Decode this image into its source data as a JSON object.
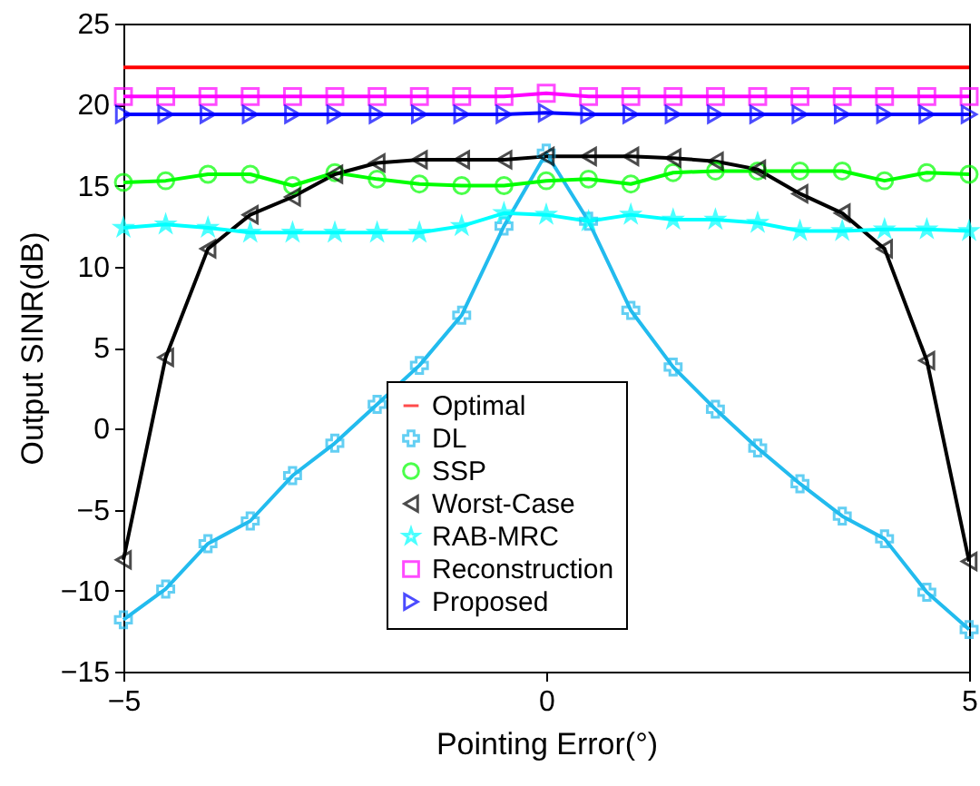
{
  "chart_data": {
    "type": "line",
    "xlabel": "Pointing Error(°)",
    "ylabel": "Output SINR(dB)",
    "x": [
      -5,
      -4.5,
      -4,
      -3.5,
      -3,
      -2.5,
      -2,
      -1.5,
      -1,
      -0.5,
      0,
      0.5,
      1,
      1.5,
      2,
      2.5,
      3,
      3.5,
      4,
      4.5,
      5
    ],
    "xlim": [
      -5,
      5
    ],
    "xticks": [
      -5,
      0,
      5
    ],
    "ylim": [
      -15,
      25
    ],
    "yticks": [
      -15,
      -10,
      -5,
      0,
      5,
      10,
      15,
      20,
      25
    ],
    "grid": false,
    "legend": "bottom",
    "series": [
      {
        "name": "Optimal",
        "color": "#ff0000",
        "marker": "none",
        "values": [
          22.3,
          22.3,
          22.3,
          22.3,
          22.3,
          22.3,
          22.3,
          22.3,
          22.3,
          22.3,
          22.3,
          22.3,
          22.3,
          22.3,
          22.3,
          22.3,
          22.3,
          22.3,
          22.3,
          22.3,
          22.3
        ]
      },
      {
        "name": "DL",
        "color": "#22bbee",
        "marker": "cross",
        "values": [
          -11.8,
          -9.9,
          -7.1,
          -5.7,
          -2.9,
          -0.9,
          1.5,
          3.9,
          7.0,
          12.5,
          17.0,
          12.8,
          7.3,
          3.8,
          1.2,
          -1.2,
          -3.4,
          -5.4,
          -6.8,
          -10.1,
          -12.4
        ]
      },
      {
        "name": "SSP",
        "color": "#00ff00",
        "marker": "circle",
        "values": [
          15.2,
          15.3,
          15.7,
          15.7,
          15.0,
          15.8,
          15.4,
          15.1,
          15.0,
          15.0,
          15.3,
          15.4,
          15.1,
          15.8,
          15.9,
          15.9,
          15.9,
          15.9,
          15.3,
          15.8,
          15.7
        ]
      },
      {
        "name": "Worst-Case",
        "color": "#000000",
        "marker": "triangle",
        "values": [
          -8.1,
          4.4,
          11.1,
          13.2,
          14.3,
          15.7,
          16.4,
          16.6,
          16.6,
          16.6,
          16.8,
          16.8,
          16.8,
          16.7,
          16.5,
          16.0,
          14.5,
          13.3,
          11.1,
          4.2,
          -8.2
        ]
      },
      {
        "name": "RAB-MRC",
        "color": "#00ffff",
        "marker": "star",
        "values": [
          12.4,
          12.6,
          12.4,
          12.1,
          12.1,
          12.1,
          12.1,
          12.1,
          12.5,
          13.3,
          13.2,
          12.8,
          13.2,
          12.9,
          12.9,
          12.7,
          12.2,
          12.2,
          12.3,
          12.3,
          12.2
        ]
      },
      {
        "name": "Reconstruction",
        "color": "#ff00ff",
        "marker": "square",
        "values": [
          20.5,
          20.5,
          20.5,
          20.5,
          20.5,
          20.5,
          20.5,
          20.5,
          20.5,
          20.5,
          20.7,
          20.5,
          20.5,
          20.5,
          20.5,
          20.5,
          20.5,
          20.5,
          20.5,
          20.5,
          20.5
        ]
      },
      {
        "name": "Proposed",
        "color": "#0000ff",
        "marker": "triangle",
        "values": [
          19.4,
          19.4,
          19.4,
          19.4,
          19.4,
          19.4,
          19.4,
          19.4,
          19.4,
          19.4,
          19.5,
          19.4,
          19.4,
          19.4,
          19.4,
          19.4,
          19.4,
          19.4,
          19.4,
          19.4,
          19.4
        ]
      }
    ]
  }
}
